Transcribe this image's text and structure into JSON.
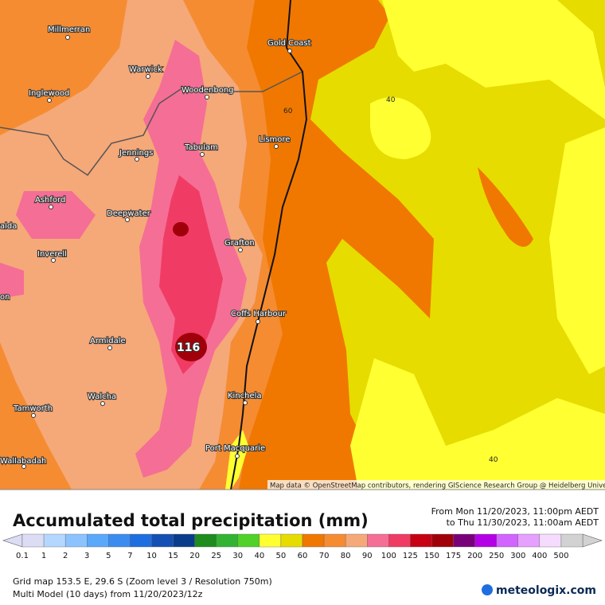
{
  "map": {
    "places": [
      "Millmerran",
      "Warwick",
      "Inglewood",
      "Woodenbong",
      "Gold Coast",
      "Jennings",
      "Tabulam",
      "Lismore",
      "Ashford",
      "Deepwater",
      "alda",
      "Inverell",
      "Grafton",
      "on",
      "Coffs Harbour",
      "Armidale",
      "Walcha",
      "Kinchela",
      "Tamworth",
      "Port Macquarie",
      "Wallabadah"
    ],
    "contour_labels": [
      "60",
      "40",
      "40"
    ],
    "max_label": "116",
    "attribution": "Map data © OpenStreetMap contributors, rendering GIScience Research Group @ Heidelberg University"
  },
  "header": {
    "title": "Accumulated total precipitation (mm)",
    "from": "From Mon 11/20/2023, 11:00pm AEDT",
    "to": "to Thu 11/30/2023, 11:00am AEDT"
  },
  "legend": [
    {
      "label": "0.1",
      "color": "#dcdcf5"
    },
    {
      "label": "1",
      "color": "#b4d7ff"
    },
    {
      "label": "2",
      "color": "#8cc3ff"
    },
    {
      "label": "3",
      "color": "#5aa8fa"
    },
    {
      "label": "5",
      "color": "#3c8cf0"
    },
    {
      "label": "7",
      "color": "#1e6ee1"
    },
    {
      "label": "10",
      "color": "#1450b4"
    },
    {
      "label": "15",
      "color": "#0a3c8c"
    },
    {
      "label": "20",
      "color": "#1e8c1e"
    },
    {
      "label": "25",
      "color": "#32b432"
    },
    {
      "label": "30",
      "color": "#50d228"
    },
    {
      "label": "40",
      "color": "#ffff32"
    },
    {
      "label": "50",
      "color": "#e6dc00"
    },
    {
      "label": "60",
      "color": "#f07800"
    },
    {
      "label": "70",
      "color": "#f58c32"
    },
    {
      "label": "80",
      "color": "#f5a878"
    },
    {
      "label": "90",
      "color": "#f56e96"
    },
    {
      "label": "100",
      "color": "#f03c64"
    },
    {
      "label": "125",
      "color": "#c80014"
    },
    {
      "label": "150",
      "color": "#a0000a"
    },
    {
      "label": "175",
      "color": "#780078"
    },
    {
      "label": "200",
      "color": "#b400e6"
    },
    {
      "label": "250",
      "color": "#d264ff"
    },
    {
      "label": "300",
      "color": "#e6a0ff"
    },
    {
      "label": "400",
      "color": "#f5dcff"
    },
    {
      "label": "500",
      "color": "#d2d2d2"
    }
  ],
  "footer": {
    "grid": "Grid map 153.5 E, 29.6 S (Zoom level 3 / Resolution 750m)",
    "model": "Multi Model (10 days) from 11/20/2023/12z",
    "brand": "meteologix.com"
  }
}
